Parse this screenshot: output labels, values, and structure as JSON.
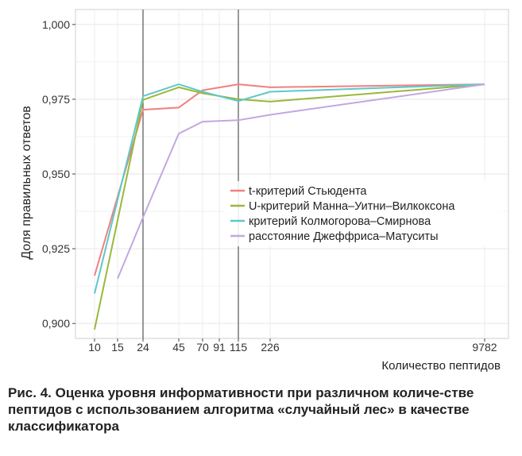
{
  "caption": {
    "label": "Рис. 4.",
    "text": "Оценка уровня информативности при различном количе-стве пептидов с использованием алгоритма «случайный лес» в качестве классификатора"
  },
  "chart_data": {
    "type": "line",
    "xlabel": "Количество пептидов",
    "ylabel": "Доля правильных ответов",
    "x_ticks": [
      "10",
      "15",
      "24",
      "45",
      "70",
      "91",
      "115",
      "226",
      "9782"
    ],
    "y_ticks": [
      "1,000",
      "0,975",
      "0,950",
      "0,925",
      "0,900"
    ],
    "ylim": [
      0.895,
      1.005
    ],
    "vertical_lines_at": [
      "24",
      "115"
    ],
    "grid": true,
    "legend_position": "center-right",
    "series": [
      {
        "name": "t-критерий Стьюдента",
        "color": "#f08080",
        "points": [
          [
            "10",
            0.916
          ],
          [
            "24",
            0.9715
          ],
          [
            "45",
            0.9722
          ],
          [
            "70",
            0.978
          ],
          [
            "115",
            0.98
          ],
          [
            "226",
            0.979
          ],
          [
            "9782",
            0.98
          ]
        ]
      },
      {
        "name": "U-критерий Манна–Уитни–Вилкоксона",
        "color": "#9ab83a",
        "points": [
          [
            "10",
            0.898
          ],
          [
            "24",
            0.9748
          ],
          [
            "45",
            0.979
          ],
          [
            "70",
            0.977
          ],
          [
            "115",
            0.975
          ],
          [
            "226",
            0.9742
          ],
          [
            "9782",
            0.98
          ]
        ]
      },
      {
        "name": "критерий Колмогорова–Смирнова",
        "color": "#5ec8c8",
        "points": [
          [
            "10",
            0.91
          ],
          [
            "24",
            0.976
          ],
          [
            "45",
            0.98
          ],
          [
            "70",
            0.9775
          ],
          [
            "115",
            0.9744
          ],
          [
            "226",
            0.9775
          ],
          [
            "9782",
            0.98
          ]
        ]
      },
      {
        "name": "расстояние Джеффриса–Матуситы",
        "color": "#c3a8e0",
        "points": [
          [
            "15",
            0.915
          ],
          [
            "24",
            0.9355
          ],
          [
            "45",
            0.9635
          ],
          [
            "70",
            0.9675
          ],
          [
            "115",
            0.968
          ],
          [
            "226",
            0.9698
          ],
          [
            "9782",
            0.98
          ]
        ]
      }
    ]
  }
}
